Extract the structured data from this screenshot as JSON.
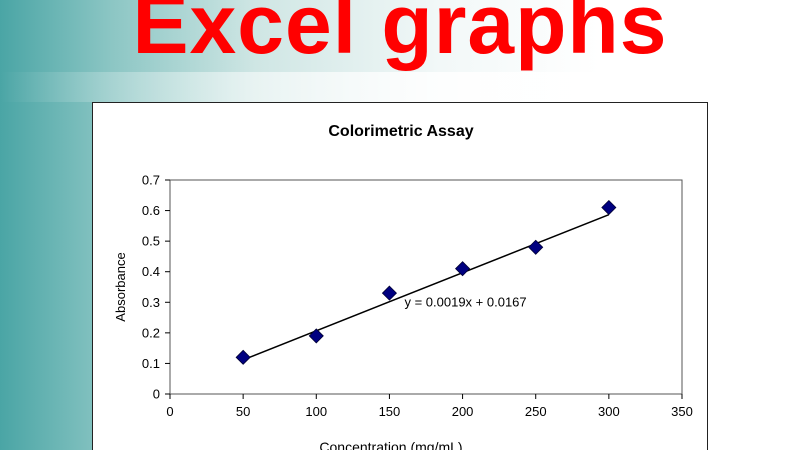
{
  "slide": {
    "title": "Excel graphs"
  },
  "chart_data": {
    "type": "scatter",
    "title": "Colorimetric Assay",
    "xlabel": "Concentration (mg/mL)",
    "ylabel": "Absorbance",
    "xlim": [
      0,
      350
    ],
    "ylim": [
      0,
      0.7
    ],
    "xticks": [
      0,
      50,
      100,
      150,
      200,
      250,
      300,
      350
    ],
    "yticks": [
      0,
      0.1,
      0.2,
      0.3,
      0.4,
      0.5,
      0.6,
      0.7
    ],
    "grid": false,
    "legend": "none",
    "series": [
      {
        "color": "#000080",
        "marker": "diamond",
        "x": [
          50,
          100,
          150,
          200,
          250,
          300
        ],
        "y": [
          0.12,
          0.19,
          0.33,
          0.41,
          0.48,
          0.61
        ]
      }
    ],
    "trendline": {
      "type": "linear",
      "slope": 0.0019,
      "intercept": 0.0167,
      "x_range": [
        50,
        300
      ],
      "color": "#000000"
    },
    "annotations": [
      {
        "text": "y = 0.0019x + 0.0167",
        "x": 200,
        "y": 0.3
      }
    ]
  }
}
